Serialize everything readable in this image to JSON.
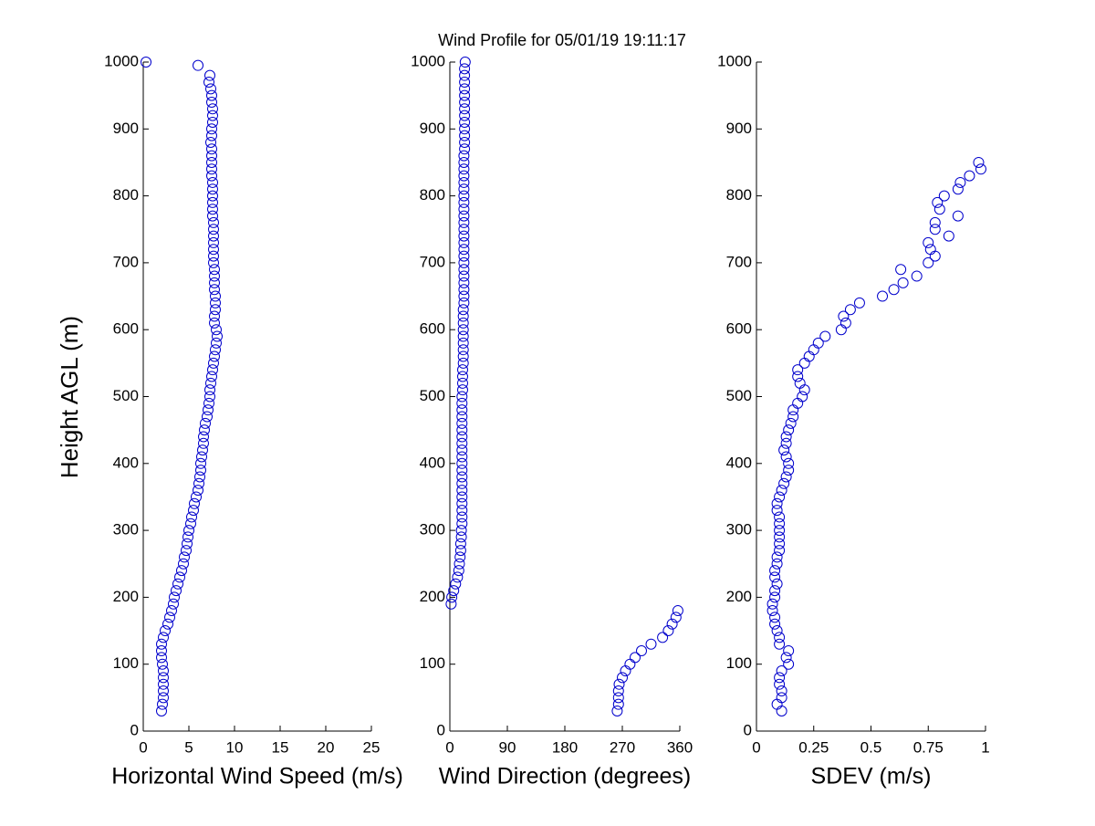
{
  "chart_data": [
    {
      "type": "scatter",
      "title": "Wind Profile for  05/01/19 19:11:17",
      "y_label": "Height AGL (m)",
      "x_label": "Horizontal Wind Speed (m/s)",
      "color": "#0000cc",
      "x": [
        2.0,
        2.1,
        2.2,
        2.2,
        2.2,
        2.2,
        2.2,
        2.1,
        2.0,
        2.0,
        2.0,
        2.2,
        2.4,
        2.7,
        2.9,
        3.1,
        3.3,
        3.4,
        3.6,
        3.8,
        4.0,
        4.2,
        4.4,
        4.5,
        4.7,
        4.8,
        4.9,
        5.0,
        5.2,
        5.3,
        5.5,
        5.6,
        5.8,
        6.0,
        6.1,
        6.2,
        6.3,
        6.3,
        6.4,
        6.5,
        6.6,
        6.6,
        6.7,
        6.8,
        7.0,
        7.1,
        7.2,
        7.3,
        7.3,
        7.4,
        7.5,
        7.6,
        7.7,
        7.8,
        7.9,
        8.0,
        8.1,
        8.0,
        7.8,
        7.8,
        7.9,
        7.9,
        7.9,
        7.8,
        7.8,
        7.8,
        7.8,
        7.7,
        7.7,
        7.7,
        7.7,
        7.7,
        7.7,
        7.7,
        7.6,
        7.6,
        7.6,
        7.6,
        7.6,
        7.6,
        7.5,
        7.5,
        7.5,
        7.5,
        7.5,
        7.4,
        7.5,
        7.5,
        7.6,
        7.6,
        7.6,
        7.5,
        7.5,
        7.4,
        7.2,
        7.3,
        6.0,
        0.3
      ],
      "y": [
        30,
        40,
        50,
        60,
        70,
        80,
        90,
        100,
        110,
        120,
        130,
        140,
        150,
        160,
        170,
        180,
        190,
        200,
        210,
        220,
        230,
        240,
        250,
        260,
        270,
        280,
        290,
        300,
        310,
        320,
        330,
        340,
        350,
        360,
        370,
        380,
        390,
        400,
        410,
        420,
        430,
        440,
        450,
        460,
        470,
        480,
        490,
        500,
        510,
        520,
        530,
        540,
        550,
        560,
        570,
        580,
        590,
        600,
        610,
        620,
        630,
        640,
        650,
        660,
        670,
        680,
        690,
        700,
        710,
        720,
        730,
        740,
        750,
        760,
        770,
        780,
        790,
        800,
        810,
        820,
        830,
        840,
        850,
        860,
        870,
        880,
        890,
        900,
        910,
        920,
        930,
        940,
        950,
        960,
        970,
        980,
        995,
        1000
      ],
      "xlim": [
        0,
        25
      ],
      "xticks": [
        0,
        5,
        10,
        15,
        20,
        25
      ],
      "ylim": [
        0,
        1000
      ],
      "yticks": [
        0,
        100,
        200,
        300,
        400,
        500,
        600,
        700,
        800,
        900,
        1000
      ]
    },
    {
      "type": "scatter",
      "x_label": "Wind Direction (degrees)",
      "color": "#0000cc",
      "x": [
        262,
        264,
        264,
        264,
        265,
        270,
        275,
        282,
        290,
        300,
        315,
        333,
        342,
        348,
        354,
        357,
        2,
        3,
        6,
        9,
        12,
        14,
        15,
        16,
        17,
        17,
        18,
        18,
        19,
        19,
        19,
        19,
        19,
        19,
        19,
        19,
        19,
        19,
        19,
        19,
        19,
        19,
        19,
        19,
        19,
        19,
        19,
        19,
        20,
        20,
        20,
        20,
        21,
        21,
        21,
        21,
        21,
        21,
        21,
        21,
        21,
        22,
        22,
        22,
        22,
        22,
        22,
        22,
        22,
        22,
        22,
        22,
        22,
        22,
        22,
        22,
        22,
        22,
        22,
        22,
        22,
        22,
        22,
        22,
        23,
        23,
        23,
        23,
        23,
        23,
        23,
        23,
        23,
        23,
        23,
        23,
        23,
        24
      ],
      "y": [
        30,
        40,
        50,
        60,
        70,
        80,
        90,
        100,
        110,
        120,
        130,
        140,
        150,
        160,
        170,
        180,
        190,
        200,
        210,
        220,
        230,
        240,
        250,
        260,
        270,
        280,
        290,
        300,
        310,
        320,
        330,
        340,
        350,
        360,
        370,
        380,
        390,
        400,
        410,
        420,
        430,
        440,
        450,
        460,
        470,
        480,
        490,
        500,
        510,
        520,
        530,
        540,
        550,
        560,
        570,
        580,
        590,
        600,
        610,
        620,
        630,
        640,
        650,
        660,
        670,
        680,
        690,
        700,
        710,
        720,
        730,
        740,
        750,
        760,
        770,
        780,
        790,
        800,
        810,
        820,
        830,
        840,
        850,
        860,
        870,
        880,
        890,
        900,
        910,
        920,
        930,
        940,
        950,
        960,
        970,
        980,
        990,
        1000
      ],
      "xlim": [
        0,
        360
      ],
      "xticks": [
        0,
        90,
        180,
        270,
        360
      ],
      "ylim": [
        0,
        1000
      ],
      "yticks": [
        0,
        100,
        200,
        300,
        400,
        500,
        600,
        700,
        800,
        900,
        1000
      ]
    },
    {
      "type": "scatter",
      "x_label": "SDEV  (m/s)",
      "color": "#0000cc",
      "x": [
        0.11,
        0.09,
        0.11,
        0.11,
        0.1,
        0.1,
        0.11,
        0.14,
        0.13,
        0.14,
        0.1,
        0.1,
        0.09,
        0.08,
        0.08,
        0.07,
        0.07,
        0.08,
        0.08,
        0.09,
        0.08,
        0.08,
        0.09,
        0.09,
        0.1,
        0.1,
        0.1,
        0.1,
        0.1,
        0.1,
        0.09,
        0.09,
        0.1,
        0.11,
        0.12,
        0.13,
        0.14,
        0.14,
        0.13,
        0.12,
        0.13,
        0.13,
        0.14,
        0.15,
        0.16,
        0.16,
        0.18,
        0.2,
        0.21,
        0.19,
        0.18,
        0.18,
        0.21,
        0.23,
        0.25,
        0.27,
        0.3,
        0.37,
        0.39,
        0.38,
        0.41,
        0.45,
        0.55,
        0.6,
        0.64,
        0.7,
        0.63,
        0.75,
        0.78,
        0.76,
        0.75,
        0.84,
        0.78,
        0.78,
        0.88,
        0.8,
        0.79,
        0.82,
        0.88,
        0.89,
        0.93,
        0.98,
        0.97
      ],
      "y": [
        30,
        40,
        50,
        60,
        70,
        80,
        90,
        100,
        110,
        120,
        130,
        140,
        150,
        160,
        170,
        180,
        190,
        200,
        210,
        220,
        230,
        240,
        250,
        260,
        270,
        280,
        290,
        300,
        310,
        320,
        330,
        340,
        350,
        360,
        370,
        380,
        390,
        400,
        410,
        420,
        430,
        440,
        450,
        460,
        470,
        480,
        490,
        500,
        510,
        520,
        530,
        540,
        550,
        560,
        570,
        580,
        590,
        600,
        610,
        620,
        630,
        640,
        650,
        660,
        670,
        680,
        690,
        700,
        710,
        720,
        730,
        740,
        750,
        760,
        770,
        780,
        790,
        800,
        810,
        820,
        830,
        840,
        850
      ],
      "xlim": [
        0,
        1
      ],
      "xticks": [
        0,
        0.25,
        0.5,
        0.75,
        1
      ],
      "ylim": [
        0,
        1000
      ],
      "yticks": [
        0,
        100,
        200,
        300,
        400,
        500,
        600,
        700,
        800,
        900,
        1000
      ]
    }
  ]
}
